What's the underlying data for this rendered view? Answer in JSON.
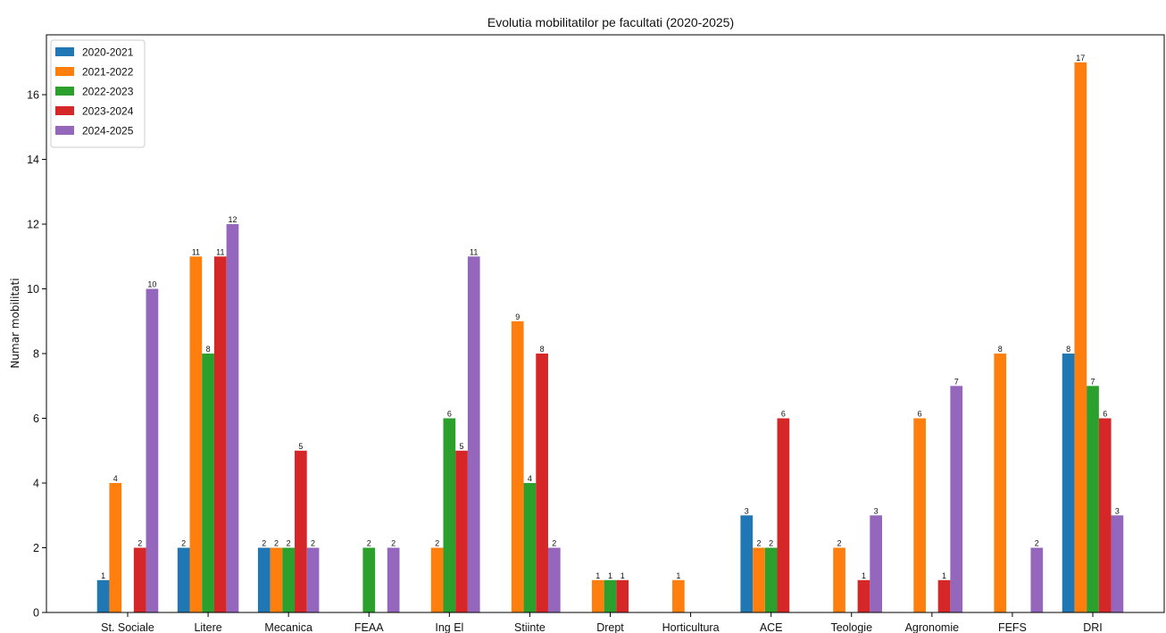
{
  "chart_data": {
    "type": "bar",
    "title": "Evolutia mobilitatilor pe facultati (2020-2025)",
    "xlabel": "",
    "ylabel": "Numar mobilitati",
    "ylim": [
      0,
      17.85
    ],
    "yticks": [
      0,
      2,
      4,
      6,
      8,
      10,
      12,
      14,
      16
    ],
    "grid": false,
    "legend_position": "top-left",
    "categories": [
      "St. Sociale",
      "Litere",
      "Mecanica",
      "FEAA",
      "Ing El",
      "Stiinte",
      "Drept",
      "Horticultura",
      "ACE",
      "Teologie",
      "Agronomie",
      "FEFS",
      "DRI"
    ],
    "series": [
      {
        "name": "2020-2021",
        "color": "#1f77b4",
        "values": [
          1,
          2,
          2,
          0,
          0,
          0,
          0,
          0,
          3,
          0,
          0,
          0,
          8
        ]
      },
      {
        "name": "2021-2022",
        "color": "#ff7f0e",
        "values": [
          4,
          11,
          2,
          0,
          2,
          9,
          1,
          1,
          2,
          2,
          6,
          8,
          17
        ]
      },
      {
        "name": "2022-2023",
        "color": "#2ca02c",
        "values": [
          0,
          8,
          2,
          2,
          6,
          4,
          1,
          0,
          2,
          0,
          0,
          0,
          7
        ]
      },
      {
        "name": "2023-2024",
        "color": "#d62728",
        "values": [
          2,
          11,
          5,
          0,
          5,
          8,
          1,
          0,
          6,
          1,
          1,
          0,
          6
        ]
      },
      {
        "name": "2024-2025",
        "color": "#9467bd",
        "values": [
          10,
          12,
          2,
          2,
          11,
          2,
          0,
          0,
          0,
          3,
          7,
          2,
          3
        ]
      }
    ]
  }
}
